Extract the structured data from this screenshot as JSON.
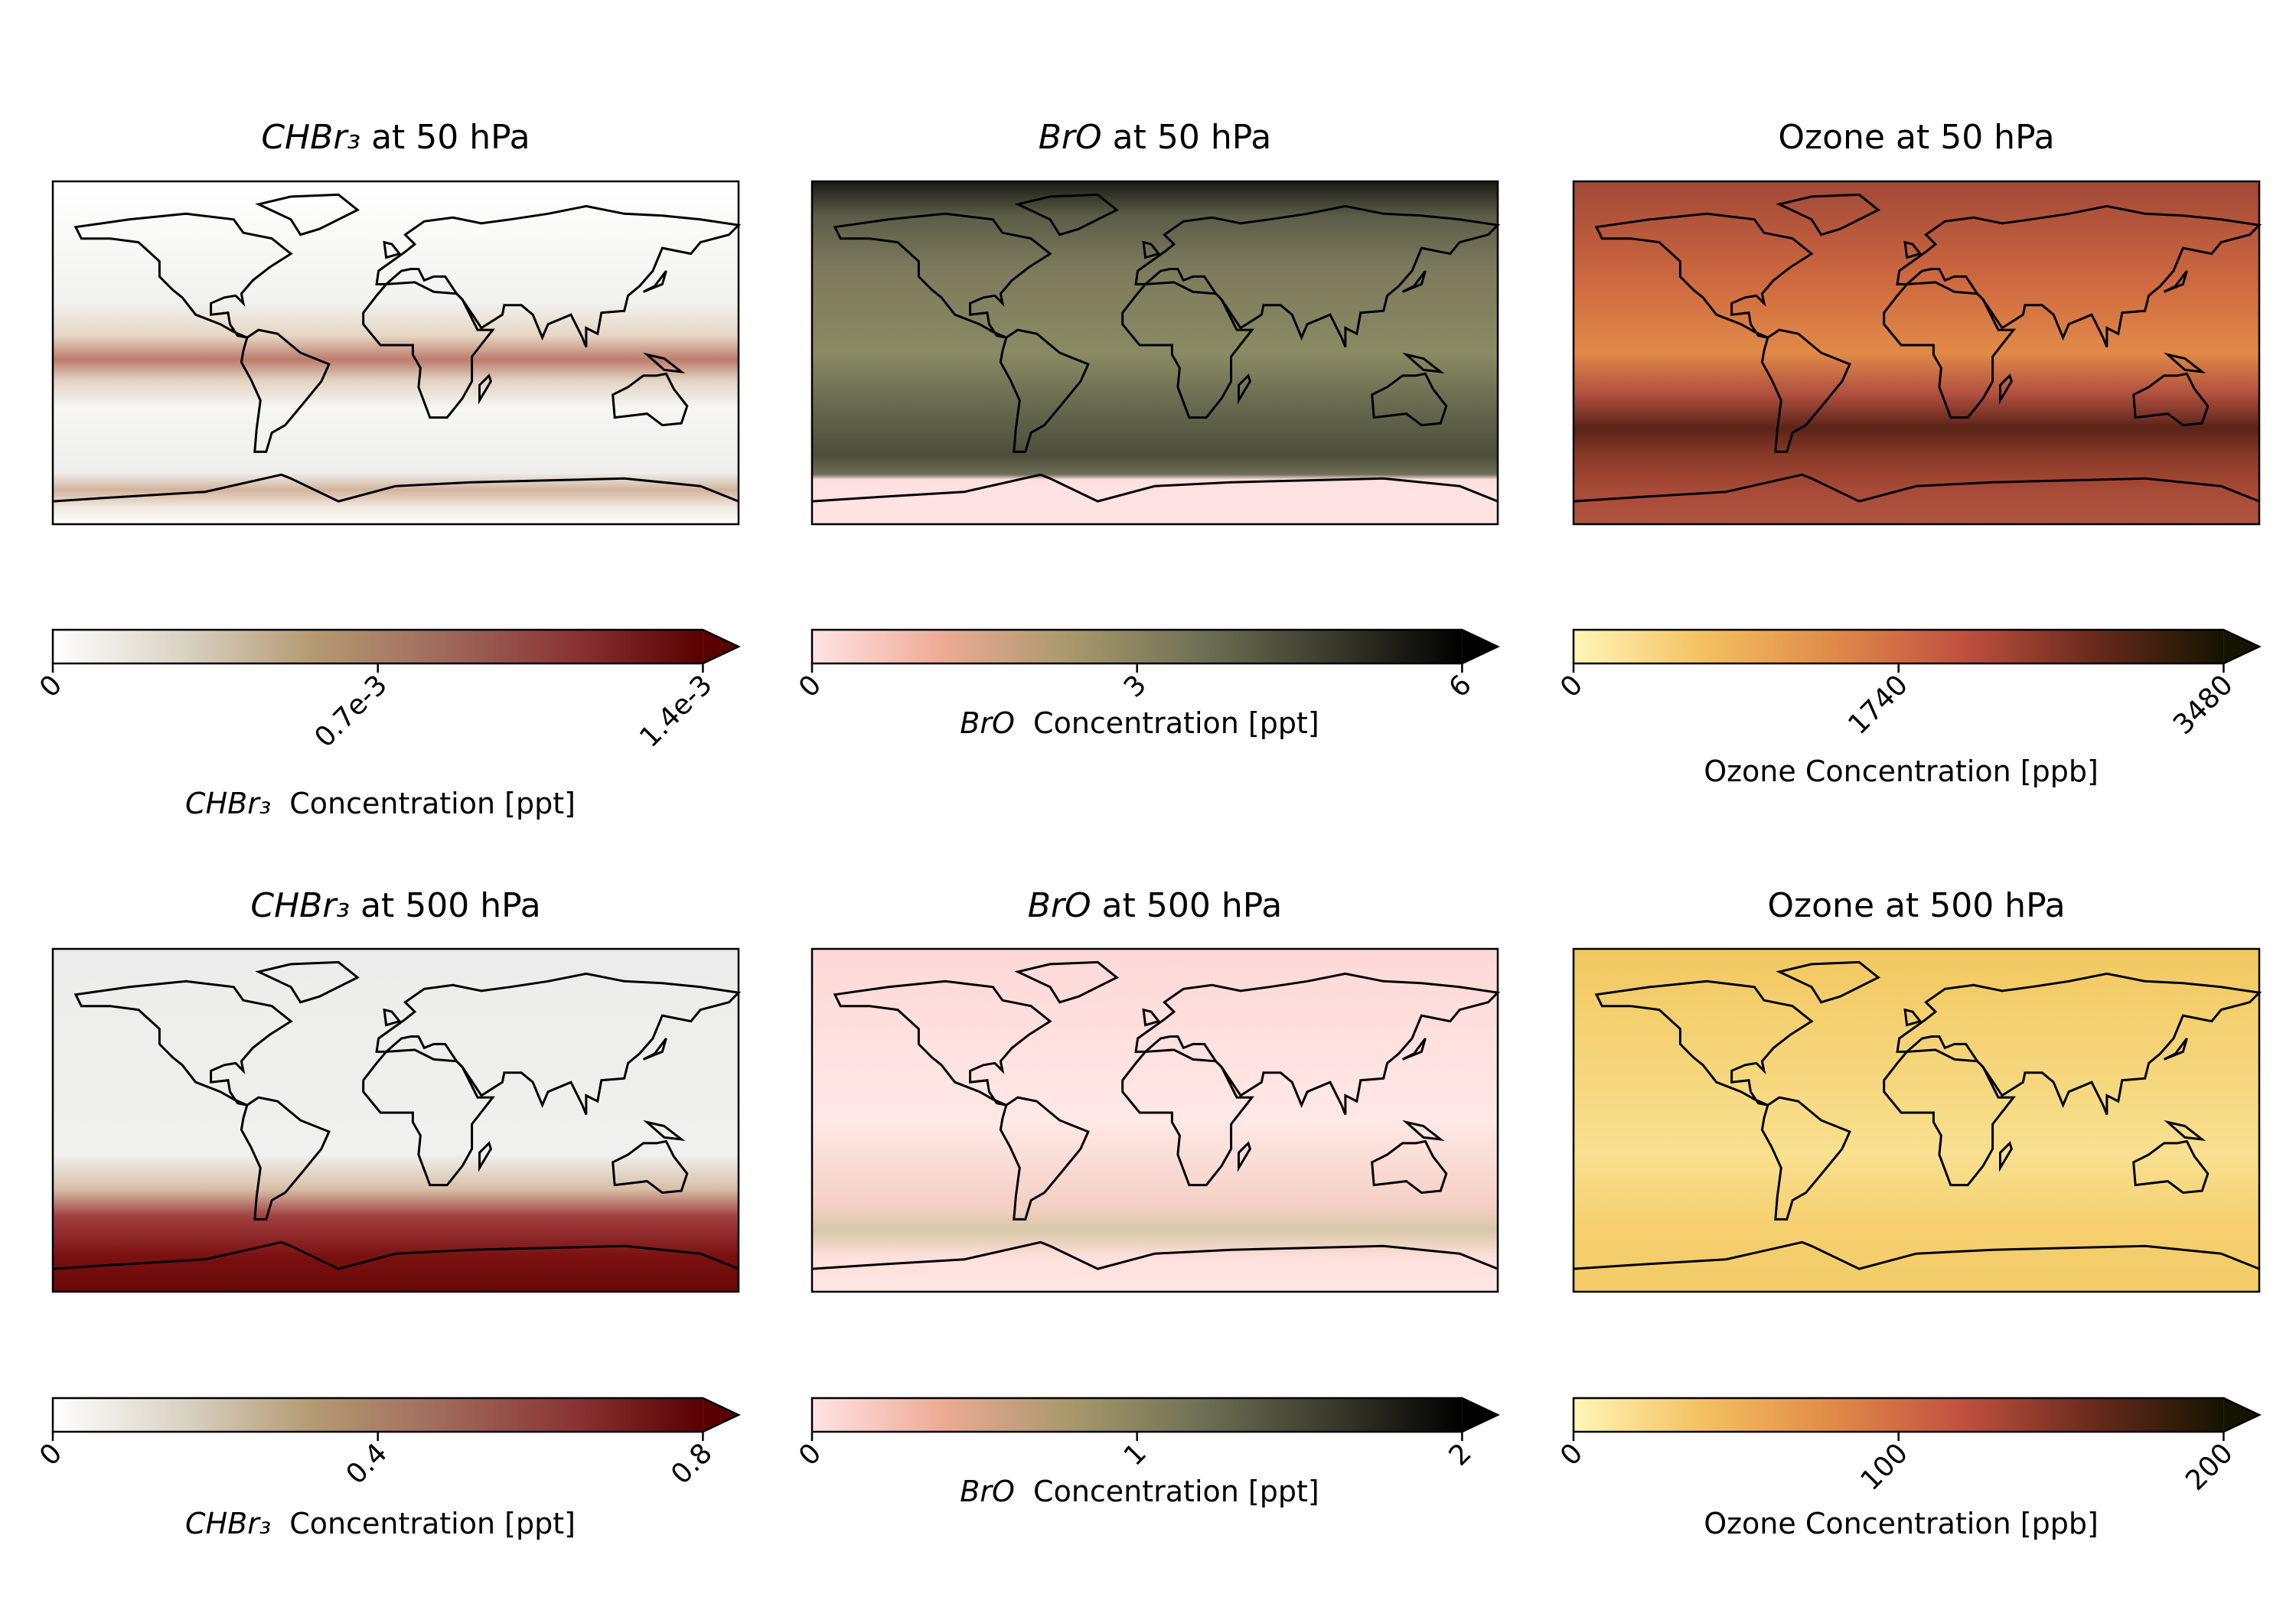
{
  "chart_data": [
    {
      "type": "map",
      "title": [
        "CHBr₃",
        "at 50 hPa"
      ],
      "italic_species": true,
      "colorbar": {
        "clim": [
          0,
          0.0014
        ],
        "extend": "max",
        "ticks": [
          0,
          {
            "value": 0.0007,
            "label": "0.7e-3"
          },
          {
            "value": 0.0014,
            "label": "1.4e-3"
          }
        ],
        "label": [
          "CHBr₃",
          "Concentration [ppt]"
        ],
        "colormap": [
          "#ffffff",
          "#d9d3c4",
          "#b49a72",
          "#a06a5c",
          "#8a3434",
          "#5a0000"
        ]
      }
    },
    {
      "type": "map",
      "title": [
        "BrO",
        "at 50 hPa"
      ],
      "italic_species": true,
      "colorbar": {
        "clim": [
          0,
          6
        ],
        "extend": "max",
        "ticks": [
          0,
          3,
          6
        ],
        "label": [
          "BrO",
          "Concentration [ppt]"
        ],
        "colormap": [
          "#ffe4e4",
          "#eeaa96",
          "#a8986c",
          "#6e7054",
          "#3a3a2c",
          "#000000"
        ]
      }
    },
    {
      "type": "map",
      "title": [
        "Ozone",
        "at 50 hPa"
      ],
      "italic_species": false,
      "colorbar": {
        "clim": [
          0,
          3480
        ],
        "extend": "max",
        "ticks": [
          0,
          1740,
          3480
        ],
        "label": [
          "Ozone",
          "Concentration [ppb]"
        ],
        "colormap": [
          "#fff7b8",
          "#f4c060",
          "#e08a48",
          "#c05040",
          "#6a2a1c",
          "#141400"
        ]
      }
    },
    {
      "type": "map",
      "title": [
        "CHBr₃",
        "at 500 hPa"
      ],
      "italic_species": true,
      "colorbar": {
        "clim": [
          0,
          0.8
        ],
        "extend": "max",
        "ticks": [
          0,
          0.4,
          0.8
        ],
        "label": [
          "CHBr₃",
          "Concentration [ppt]"
        ],
        "colormap": [
          "#ffffff",
          "#d9d3c4",
          "#b49a72",
          "#a06a5c",
          "#8a3434",
          "#5a0000"
        ]
      }
    },
    {
      "type": "map",
      "title": [
        "BrO",
        "at 500 hPa"
      ],
      "italic_species": true,
      "colorbar": {
        "clim": [
          0,
          2
        ],
        "extend": "max",
        "ticks": [
          0,
          1,
          2
        ],
        "label": [
          "BrO",
          "Concentration [ppt]"
        ],
        "colormap": [
          "#ffe4e4",
          "#eeaa96",
          "#a8986c",
          "#6e7054",
          "#3a3a2c",
          "#000000"
        ]
      }
    },
    {
      "type": "map",
      "title": [
        "Ozone",
        "at 500 hPa"
      ],
      "italic_species": false,
      "colorbar": {
        "clim": [
          0,
          200
        ],
        "extend": "max",
        "ticks": [
          0,
          100,
          200
        ],
        "label": [
          "Ozone",
          "Concentration [ppb]"
        ],
        "colormap": [
          "#fff7b8",
          "#f4c060",
          "#e08a48",
          "#c05040",
          "#6a2a1c",
          "#141400"
        ]
      }
    }
  ]
}
